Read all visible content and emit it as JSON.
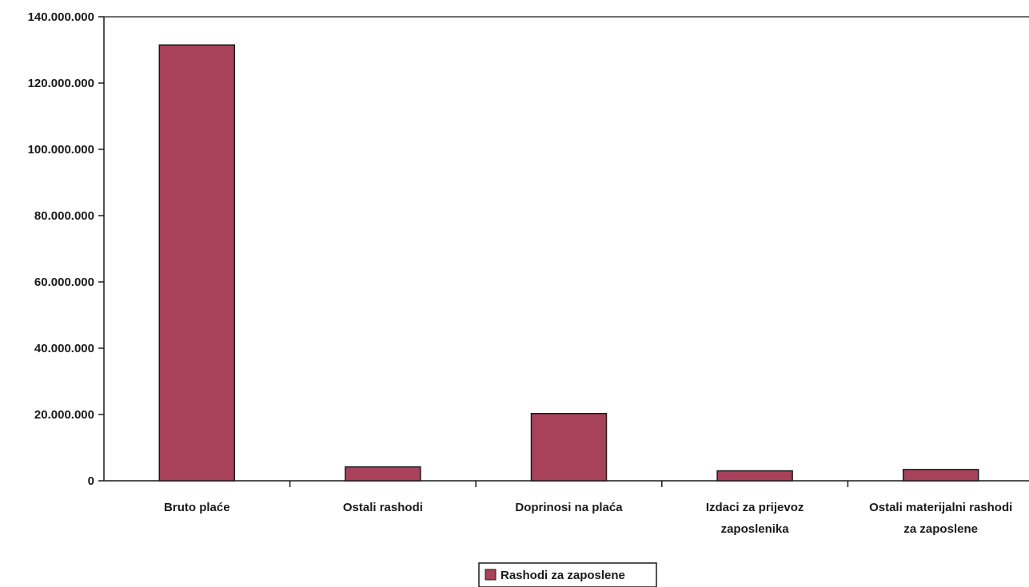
{
  "chart_data": {
    "type": "bar",
    "categories": [
      "Bruto plaće",
      "Ostali rashodi",
      "Doprinosi na plaća",
      "Izdaci za prijevoz zaposlenika",
      "Ostali materijalni rashodi za zaposlene"
    ],
    "category_lines": [
      [
        "Bruto plaće"
      ],
      [
        "Ostali rashodi"
      ],
      [
        "Doprinosi na plaća"
      ],
      [
        "Izdaci za prijevoz",
        "zaposlenika"
      ],
      [
        "Ostali materijalni rashodi",
        "za zaposlene"
      ]
    ],
    "series": [
      {
        "name": "Rashodi za zaposlene",
        "values": [
          131500000,
          4200000,
          20300000,
          3000000,
          3400000
        ]
      }
    ],
    "y_ticks": [
      0,
      20000000,
      40000000,
      60000000,
      80000000,
      100000000,
      120000000,
      140000000
    ],
    "y_tick_labels": [
      "0",
      "20.000.000",
      "40.000.000",
      "60.000.000",
      "80.000.000",
      "100.000.000",
      "120.000.000",
      "140.000.000"
    ],
    "ylim": [
      0,
      140000000
    ],
    "grid": false,
    "legend_position": "bottom-center",
    "colors": {
      "bar": "#a8415a",
      "bar_stroke": "#1a1a1a",
      "axis": "#1a1a1a"
    }
  }
}
